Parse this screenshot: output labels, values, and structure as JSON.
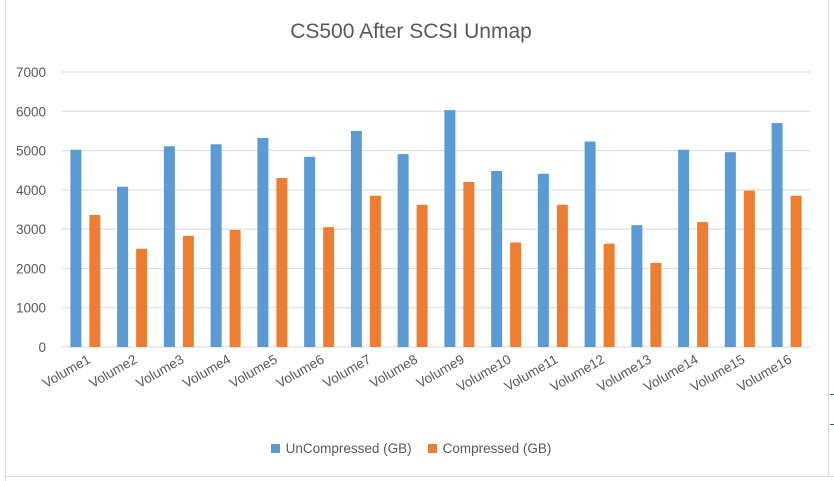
{
  "colors": {
    "uncompressed": "#5b9bd5",
    "compressed": "#ed7d31",
    "gridline": "#d9d9d9",
    "axis_text": "#595959"
  },
  "chart_data": {
    "type": "bar",
    "title": "CS500 After SCSI Unmap",
    "xlabel": "",
    "ylabel": "",
    "ylim": [
      0,
      7000
    ],
    "yticks": [
      0,
      1000,
      2000,
      3000,
      4000,
      5000,
      6000,
      7000
    ],
    "grid": true,
    "legend_position": "bottom",
    "categories": [
      "Volume1",
      "Volume2",
      "Volume3",
      "Volume4",
      "Volume5",
      "Volume6",
      "Volume7",
      "Volume8",
      "Volume9",
      "Volume10",
      "Volume11",
      "Volume12",
      "Volume13",
      "Volume14",
      "Volume15",
      "Volume16"
    ],
    "series": [
      {
        "name": "UnCompressed (GB)",
        "values": [
          5020,
          4080,
          5110,
          5160,
          5320,
          4840,
          5500,
          4910,
          6030,
          4480,
          4410,
          5230,
          3100,
          5020,
          4960,
          5700
        ]
      },
      {
        "name": "Compressed (GB)",
        "values": [
          3360,
          2500,
          2830,
          2980,
          4300,
          3050,
          3850,
          3620,
          4200,
          2660,
          3620,
          2630,
          2140,
          3180,
          3980,
          3850
        ]
      }
    ]
  }
}
